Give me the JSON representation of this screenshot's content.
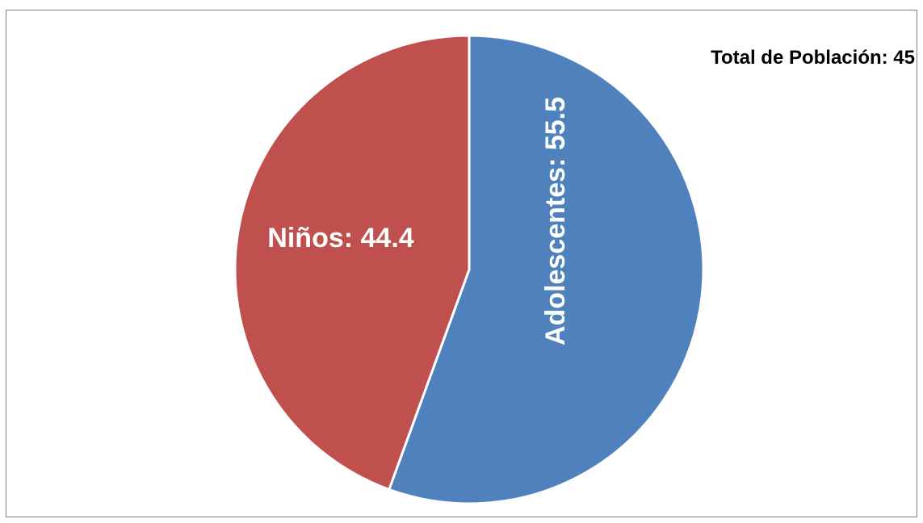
{
  "chart_data": {
    "type": "pie",
    "annotation": "Total de Población: 45",
    "slices": [
      {
        "name": "Adolescentes",
        "value": 55.5,
        "label": "Adolescentes: 55.5",
        "color": "#4f81bd"
      },
      {
        "name": "Niños",
        "value": 44.4,
        "label": "Niños: 44.4",
        "color": "#c0504d"
      }
    ],
    "start_angle_deg": 0,
    "direction": "clockwise",
    "separator_color": "#ffffff"
  }
}
